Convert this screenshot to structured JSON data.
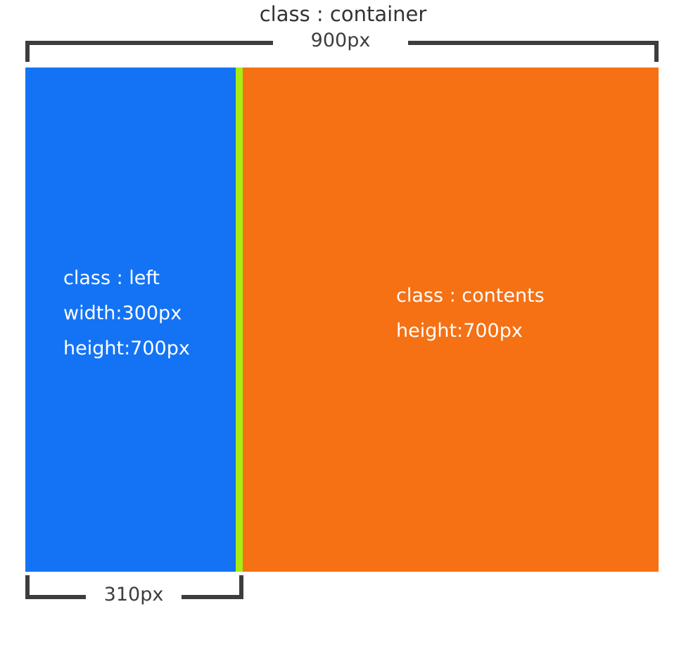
{
  "diagram": {
    "title": "class : container",
    "container_width_label": "900px",
    "left_box": {
      "lines": [
        "class : left",
        "width:300px",
        "height:700px"
      ],
      "color": "#1473f5"
    },
    "divider": {
      "color": "#a7ec12"
    },
    "contents_box": {
      "lines": [
        "class : contents",
        "height:700px"
      ],
      "color": "#f67014"
    },
    "left_width_label": "310px",
    "bracket_color": "#3d3d3d"
  }
}
